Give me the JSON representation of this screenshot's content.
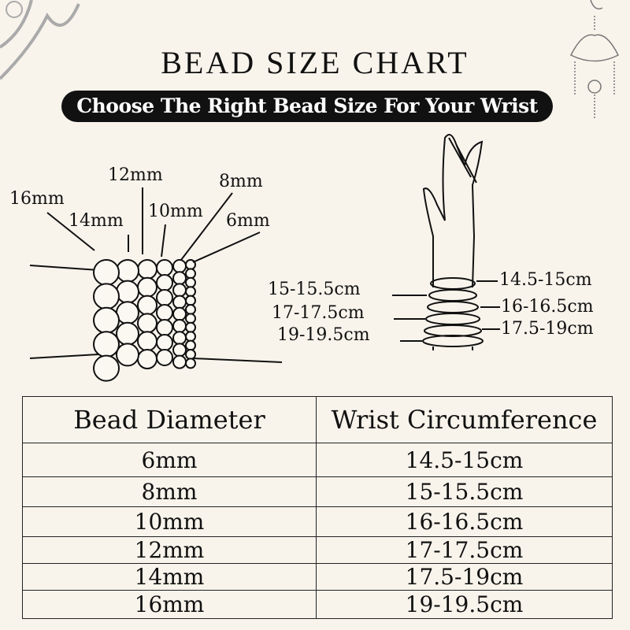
{
  "header": {
    "title": "BEAD SIZE CHART",
    "subtitle": "Choose The Right Bead Size For Your Wrist"
  },
  "bead_labels": [
    "16mm",
    "14mm",
    "12mm",
    "10mm",
    "8mm",
    "6mm"
  ],
  "wrist_labels_left": [
    "15-15.5cm",
    "17-17.5cm",
    "19-19.5cm"
  ],
  "wrist_labels_right": [
    "14.5-15cm",
    "16-16.5cm",
    "17.5-19cm"
  ],
  "table": {
    "headers": [
      "Bead Diameter",
      "Wrist Circumference"
    ],
    "rows": [
      [
        "6mm",
        "14.5-15cm"
      ],
      [
        "8mm",
        "15-15.5cm"
      ],
      [
        "10mm",
        "16-16.5cm"
      ],
      [
        "12mm",
        "17-17.5cm"
      ],
      [
        "14mm",
        "17.5-19cm"
      ],
      [
        "16mm",
        "19-19.5cm"
      ]
    ]
  }
}
